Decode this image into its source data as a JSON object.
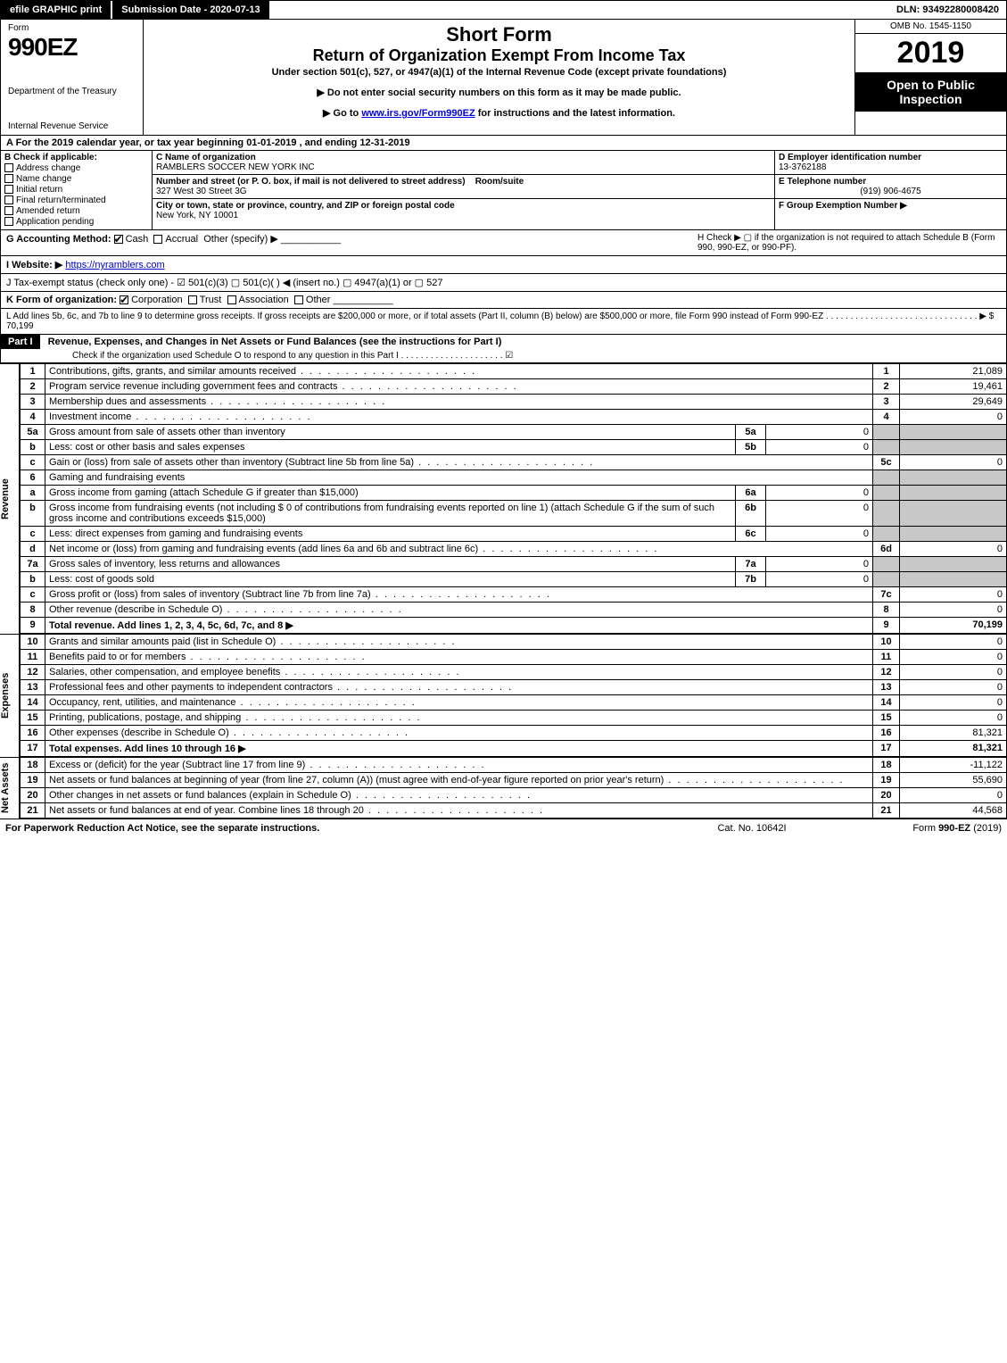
{
  "topbar": {
    "efile": "efile GRAPHIC print",
    "submission_label": "Submission Date - 2020-07-13",
    "dln": "DLN: 93492280008420"
  },
  "header": {
    "form_word": "Form",
    "form_no": "990EZ",
    "dept1": "Department of the Treasury",
    "dept2": "Internal Revenue Service",
    "title1": "Short Form",
    "title2": "Return of Organization Exempt From Income Tax",
    "subtitle": "Under section 501(c), 527, or 4947(a)(1) of the Internal Revenue Code (except private foundations)",
    "arrow1": "▶ Do not enter social security numbers on this form as it may be made public.",
    "arrow2_pre": "▶ Go to ",
    "arrow2_link": "www.irs.gov/Form990EZ",
    "arrow2_post": " for instructions and the latest information.",
    "omb": "OMB No. 1545-1150",
    "year": "2019",
    "open": "Open to Public Inspection"
  },
  "period": "A  For the 2019 calendar year, or tax year beginning 01-01-2019 , and ending 12-31-2019",
  "boxB": {
    "head": "B  Check if applicable:",
    "opts": [
      "Address change",
      "Name change",
      "Initial return",
      "Final return/terminated",
      "Amended return",
      "Application pending"
    ]
  },
  "boxC": {
    "name_hd": "C Name of organization",
    "name": "RAMBLERS SOCCER NEW YORK INC",
    "addr_hd": "Number and street (or P. O. box, if mail is not delivered to street address)",
    "room_hd": "Room/suite",
    "addr": "327 West 30 Street 3G",
    "city_hd": "City or town, state or province, country, and ZIP or foreign postal code",
    "city": "New York, NY  10001"
  },
  "boxD": {
    "ein_hd": "D Employer identification number",
    "ein": "13-3762188",
    "tel_hd": "E Telephone number",
    "tel": "(919) 906-4675",
    "grp_hd": "F Group Exemption Number  ▶"
  },
  "lineG": {
    "label": "G Accounting Method:",
    "cash": "Cash",
    "accrual": "Accrual",
    "other": "Other (specify) ▶"
  },
  "lineH": {
    "text": "H  Check ▶  ▢  if the organization is not required to attach Schedule B (Form 990, 990-EZ, or 990-PF)."
  },
  "lineI": {
    "label": "I Website: ▶",
    "url": "https://nyramblers.com"
  },
  "lineJ": "J Tax-exempt status (check only one) - ☑ 501(c)(3) ▢ 501(c)(  ) ◀ (insert no.) ▢ 4947(a)(1) or ▢ 527",
  "lineK": {
    "label": "K Form of organization:",
    "opts": [
      "Corporation",
      "Trust",
      "Association",
      "Other"
    ]
  },
  "lineL": {
    "text": "L Add lines 5b, 6c, and 7b to line 9 to determine gross receipts. If gross receipts are $200,000 or more, or if total assets (Part II, column (B) below) are $500,000 or more, file Form 990 instead of Form 990-EZ . . . . . . . . . . . . . . . . . . . . . . . . . . . . . . . ▶ $ 70,199"
  },
  "part1": {
    "bar": "Part I",
    "title": "Revenue, Expenses, and Changes in Net Assets or Fund Balances (see the instructions for Part I)",
    "note": "Check if the organization used Schedule O to respond to any question in this Part I . . . . . . . . . . . . . . . . . . . . . ☑"
  },
  "section_labels": {
    "revenue": "Revenue",
    "expenses": "Expenses",
    "netassets": "Net Assets"
  },
  "revenue_rows": [
    {
      "ln": "1",
      "desc": "Contributions, gifts, grants, and similar amounts received",
      "num": "1",
      "val": "21,089"
    },
    {
      "ln": "2",
      "desc": "Program service revenue including government fees and contracts",
      "num": "2",
      "val": "19,461"
    },
    {
      "ln": "3",
      "desc": "Membership dues and assessments",
      "num": "3",
      "val": "29,649"
    },
    {
      "ln": "4",
      "desc": "Investment income",
      "num": "4",
      "val": "0"
    },
    {
      "ln": "5a",
      "desc": "Gross amount from sale of assets other than inventory",
      "box": "5a",
      "sval": "0"
    },
    {
      "ln": "b",
      "desc": "Less: cost or other basis and sales expenses",
      "box": "5b",
      "sval": "0"
    },
    {
      "ln": "c",
      "desc": "Gain or (loss) from sale of assets other than inventory (Subtract line 5b from line 5a)",
      "num": "5c",
      "val": "0"
    },
    {
      "ln": "6",
      "desc": "Gaming and fundraising events"
    },
    {
      "ln": "a",
      "desc": "Gross income from gaming (attach Schedule G if greater than $15,000)",
      "box": "6a",
      "sval": "0"
    },
    {
      "ln": "b",
      "desc": "Gross income from fundraising events (not including $  0        of contributions from fundraising events reported on line 1) (attach Schedule G if the sum of such gross income and contributions exceeds $15,000)",
      "box": "6b",
      "sval": "0"
    },
    {
      "ln": "c",
      "desc": "Less: direct expenses from gaming and fundraising events",
      "box": "6c",
      "sval": "0"
    },
    {
      "ln": "d",
      "desc": "Net income or (loss) from gaming and fundraising events (add lines 6a and 6b and subtract line 6c)",
      "num": "6d",
      "val": "0"
    },
    {
      "ln": "7a",
      "desc": "Gross sales of inventory, less returns and allowances",
      "box": "7a",
      "sval": "0"
    },
    {
      "ln": "b",
      "desc": "Less: cost of goods sold",
      "box": "7b",
      "sval": "0"
    },
    {
      "ln": "c",
      "desc": "Gross profit or (loss) from sales of inventory (Subtract line 7b from line 7a)",
      "num": "7c",
      "val": "0"
    },
    {
      "ln": "8",
      "desc": "Other revenue (describe in Schedule O)",
      "num": "8",
      "val": "0"
    },
    {
      "ln": "9",
      "desc": "Total revenue. Add lines 1, 2, 3, 4, 5c, 6d, 7c, and 8   ▶",
      "num": "9",
      "val": "70,199",
      "bold": true
    }
  ],
  "expense_rows": [
    {
      "ln": "10",
      "desc": "Grants and similar amounts paid (list in Schedule O)",
      "num": "10",
      "val": "0"
    },
    {
      "ln": "11",
      "desc": "Benefits paid to or for members",
      "num": "11",
      "val": "0"
    },
    {
      "ln": "12",
      "desc": "Salaries, other compensation, and employee benefits",
      "num": "12",
      "val": "0"
    },
    {
      "ln": "13",
      "desc": "Professional fees and other payments to independent contractors",
      "num": "13",
      "val": "0"
    },
    {
      "ln": "14",
      "desc": "Occupancy, rent, utilities, and maintenance",
      "num": "14",
      "val": "0"
    },
    {
      "ln": "15",
      "desc": "Printing, publications, postage, and shipping",
      "num": "15",
      "val": "0"
    },
    {
      "ln": "16",
      "desc": "Other expenses (describe in Schedule O)",
      "num": "16",
      "val": "81,321"
    },
    {
      "ln": "17",
      "desc": "Total expenses. Add lines 10 through 16   ▶",
      "num": "17",
      "val": "81,321",
      "bold": true
    }
  ],
  "netasset_rows": [
    {
      "ln": "18",
      "desc": "Excess or (deficit) for the year (Subtract line 17 from line 9)",
      "num": "18",
      "val": "-11,122"
    },
    {
      "ln": "19",
      "desc": "Net assets or fund balances at beginning of year (from line 27, column (A)) (must agree with end-of-year figure reported on prior year's return)",
      "num": "19",
      "val": "55,690"
    },
    {
      "ln": "20",
      "desc": "Other changes in net assets or fund balances (explain in Schedule O)",
      "num": "20",
      "val": "0"
    },
    {
      "ln": "21",
      "desc": "Net assets or fund balances at end of year. Combine lines 18 through 20",
      "num": "21",
      "val": "44,568"
    }
  ],
  "footer": {
    "left": "For Paperwork Reduction Act Notice, see the separate instructions.",
    "mid": "Cat. No. 10642I",
    "right": "Form 990-EZ (2019)"
  }
}
